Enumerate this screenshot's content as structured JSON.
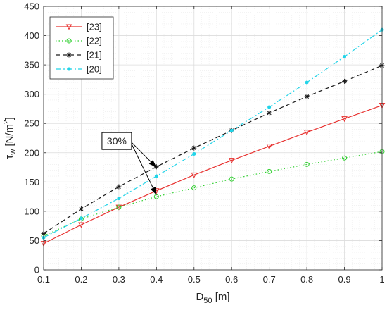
{
  "chart_data": {
    "type": "line",
    "xlabel_main": "D",
    "xlabel_sub": "50",
    "xlabel_unit": " [m]",
    "ylabel_main": "τ",
    "ylabel_sub": "w",
    "ylabel_unit_pre": " [N/m",
    "ylabel_unit_sup": "2",
    "ylabel_unit_post": "]",
    "xlim": [
      0.1,
      1.0
    ],
    "ylim": [
      0,
      450
    ],
    "x_ticks": [
      {
        "v": 0.1,
        "label": "0.1"
      },
      {
        "v": 0.2,
        "label": "0.2"
      },
      {
        "v": 0.3,
        "label": "0.3"
      },
      {
        "v": 0.4,
        "label": "0.4"
      },
      {
        "v": 0.5,
        "label": "0.5"
      },
      {
        "v": 0.6,
        "label": "0.6"
      },
      {
        "v": 0.7,
        "label": "0.7"
      },
      {
        "v": 0.8,
        "label": "0.8"
      },
      {
        "v": 0.9,
        "label": "0.9"
      },
      {
        "v": 1.0,
        "label": "1"
      }
    ],
    "y_ticks": [
      {
        "v": 0,
        "label": "0"
      },
      {
        "v": 50,
        "label": "50"
      },
      {
        "v": 100,
        "label": "100"
      },
      {
        "v": 150,
        "label": "150"
      },
      {
        "v": 200,
        "label": "200"
      },
      {
        "v": 250,
        "label": "250"
      },
      {
        "v": 300,
        "label": "300"
      },
      {
        "v": 350,
        "label": "350"
      },
      {
        "v": 400,
        "label": "400"
      },
      {
        "v": 450,
        "label": "450"
      }
    ],
    "grid": true,
    "minor_grid": true,
    "legend_position": "top-left",
    "x": [
      0.1,
      0.2,
      0.3,
      0.4,
      0.5,
      0.6,
      0.7,
      0.8,
      0.9,
      1.0
    ],
    "series": [
      {
        "name": "[23]",
        "color": "#e8312f",
        "dash": "solid",
        "marker": "triangle-down",
        "values": [
          45,
          77,
          107,
          135,
          162,
          187,
          211,
          235,
          258,
          281
        ]
      },
      {
        "name": "[22]",
        "color": "#2fcf2f",
        "dash": "dotted",
        "marker": "circle",
        "values": [
          58,
          87,
          107,
          125,
          140,
          155,
          168,
          180,
          191,
          202
        ]
      },
      {
        "name": "[21]",
        "color": "#1a1a1a",
        "dash": "dashed",
        "marker": "asterisk",
        "values": [
          62,
          104,
          142,
          176,
          208,
          238,
          268,
          296,
          322,
          349
        ]
      },
      {
        "name": "[20]",
        "color": "#22d4e8",
        "dash": "dashdot",
        "marker": "dot",
        "values": [
          55,
          88,
          122,
          160,
          198,
          238,
          278,
          320,
          364,
          410
        ]
      }
    ],
    "annotation": {
      "text": "30%",
      "arrows": [
        {
          "from": [
            0.33,
            220
          ],
          "to": [
            0.4,
            175
          ]
        },
        {
          "from": [
            0.33,
            220
          ],
          "to": [
            0.4,
            128
          ]
        }
      ]
    }
  }
}
